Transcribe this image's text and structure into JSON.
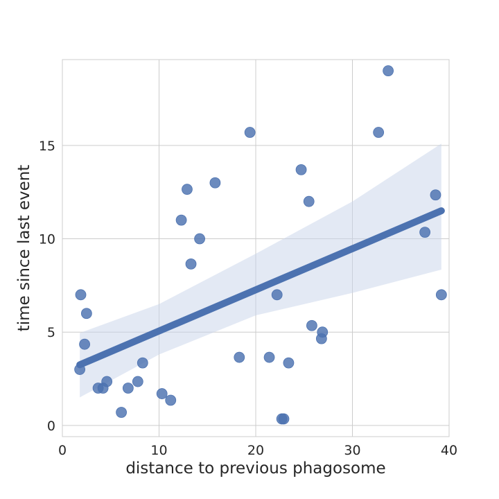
{
  "chart_data": {
    "type": "scatter",
    "title": "",
    "xlabel": "distance to previous phagosome",
    "ylabel": "time since last event",
    "xlim": [
      0,
      40
    ],
    "ylim": [
      -0.6,
      19.6
    ],
    "x_ticks": [
      0,
      10,
      20,
      30,
      40
    ],
    "y_ticks": [
      0,
      5,
      10,
      15
    ],
    "grid": true,
    "colors": {
      "points": "#4c72b0",
      "regression_line": "#4c72b0",
      "confidence_band": "#c8d3ea",
      "grid": "#cccccc",
      "background": "#ffffff"
    },
    "points": [
      {
        "x": 1.8,
        "y": 3.0
      },
      {
        "x": 1.9,
        "y": 7.0
      },
      {
        "x": 2.3,
        "y": 4.35
      },
      {
        "x": 2.5,
        "y": 6.0
      },
      {
        "x": 3.7,
        "y": 2.0
      },
      {
        "x": 4.2,
        "y": 2.0
      },
      {
        "x": 4.6,
        "y": 2.35
      },
      {
        "x": 6.1,
        "y": 0.7
      },
      {
        "x": 6.8,
        "y": 2.0
      },
      {
        "x": 7.8,
        "y": 2.35
      },
      {
        "x": 8.3,
        "y": 3.35
      },
      {
        "x": 10.3,
        "y": 1.7
      },
      {
        "x": 11.2,
        "y": 1.35
      },
      {
        "x": 12.3,
        "y": 11.0
      },
      {
        "x": 12.9,
        "y": 12.65
      },
      {
        "x": 13.3,
        "y": 8.65
      },
      {
        "x": 14.2,
        "y": 10.0
      },
      {
        "x": 15.8,
        "y": 13.0
      },
      {
        "x": 18.3,
        "y": 3.65
      },
      {
        "x": 19.4,
        "y": 15.7
      },
      {
        "x": 21.4,
        "y": 3.65
      },
      {
        "x": 22.2,
        "y": 7.0
      },
      {
        "x": 22.7,
        "y": 0.35
      },
      {
        "x": 22.9,
        "y": 0.35
      },
      {
        "x": 23.4,
        "y": 3.35
      },
      {
        "x": 24.7,
        "y": 13.7
      },
      {
        "x": 25.5,
        "y": 12.0
      },
      {
        "x": 25.8,
        "y": 5.35
      },
      {
        "x": 26.8,
        "y": 4.65
      },
      {
        "x": 26.9,
        "y": 5.0
      },
      {
        "x": 32.7,
        "y": 15.7
      },
      {
        "x": 33.7,
        "y": 19.0
      },
      {
        "x": 37.5,
        "y": 10.35
      },
      {
        "x": 38.6,
        "y": 12.35
      },
      {
        "x": 39.2,
        "y": 7.0
      }
    ],
    "regression": {
      "x_range": [
        1.8,
        39.2
      ],
      "y_at_start": 3.25,
      "y_at_end": 11.5
    },
    "confidence_band": {
      "x": [
        1.8,
        10.0,
        20.0,
        30.0,
        39.2
      ],
      "upper": [
        4.95,
        6.5,
        9.2,
        12.0,
        15.1
      ],
      "lower": [
        1.5,
        3.8,
        5.9,
        7.1,
        8.35
      ]
    }
  }
}
